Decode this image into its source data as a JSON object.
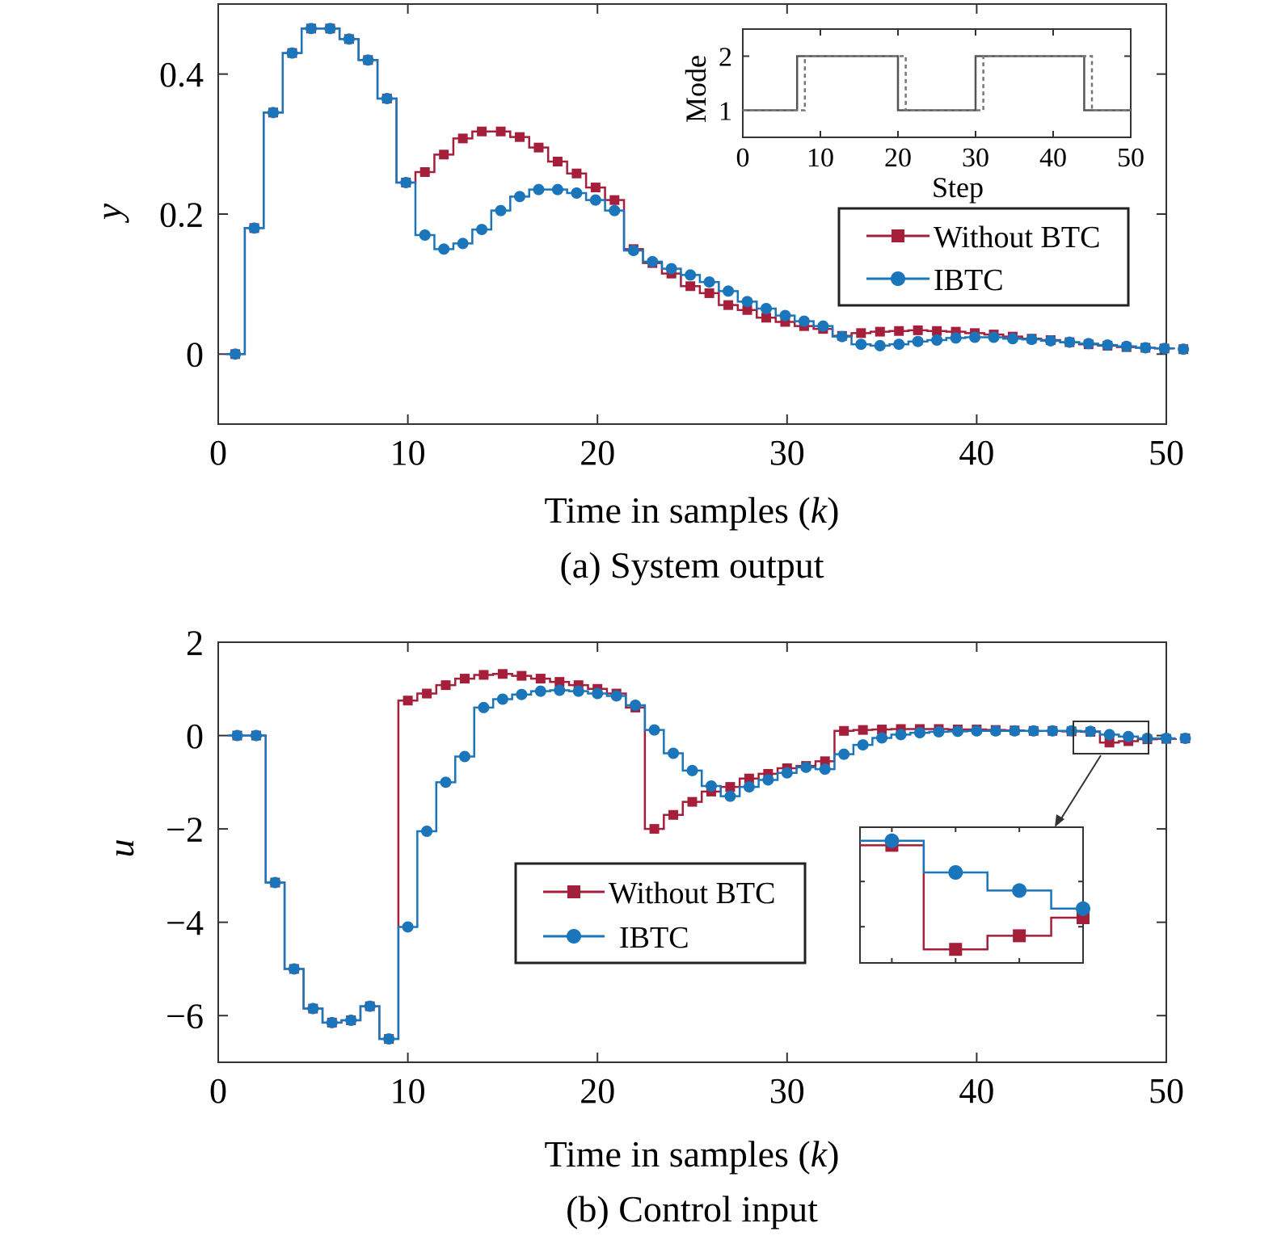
{
  "chart_data": [
    {
      "id": "a",
      "type": "line",
      "caption": "(a) System output",
      "xlabel_main": "Time in samples (",
      "xlabel_var": "k",
      "xlabel_end": ")",
      "ylabel": "y",
      "xlim": [
        0,
        50
      ],
      "ylim": [
        -0.1,
        0.5
      ],
      "xticks": [
        0,
        10,
        20,
        30,
        40,
        50
      ],
      "yticks": [
        0,
        0.2,
        0.4
      ],
      "ytick_labels": [
        "0",
        "0.2",
        "0.4"
      ],
      "legend_position": "right",
      "series": [
        {
          "name": "Without BTC",
          "color": "#a51f3b",
          "marker": "square",
          "x": [
            0,
            1,
            2,
            3,
            4,
            5,
            6,
            7,
            8,
            9,
            10,
            11,
            12,
            13,
            14,
            15,
            16,
            17,
            18,
            19,
            20,
            21,
            22,
            23,
            24,
            25,
            26,
            27,
            28,
            29,
            30,
            31,
            32,
            33,
            34,
            35,
            36,
            37,
            38,
            39,
            40,
            41,
            42,
            43,
            44,
            45,
            46,
            47,
            48,
            49,
            50
          ],
          "y": [
            0,
            0.18,
            0.345,
            0.43,
            0.465,
            0.465,
            0.45,
            0.42,
            0.365,
            0.245,
            0.26,
            0.285,
            0.308,
            0.318,
            0.318,
            0.31,
            0.295,
            0.275,
            0.258,
            0.238,
            0.22,
            0.15,
            0.13,
            0.115,
            0.097,
            0.087,
            0.07,
            0.063,
            0.052,
            0.046,
            0.04,
            0.036,
            0.026,
            0.03,
            0.032,
            0.033,
            0.034,
            0.033,
            0.032,
            0.03,
            0.028,
            0.025,
            0.022,
            0.02,
            0.017,
            0.014,
            0.012,
            0.01,
            0.009,
            0.008,
            0.007
          ]
        },
        {
          "name": "IBTC",
          "color": "#1a75bb",
          "marker": "circle",
          "x": [
            0,
            1,
            2,
            3,
            4,
            5,
            6,
            7,
            8,
            9,
            10,
            11,
            12,
            13,
            14,
            15,
            16,
            17,
            18,
            19,
            20,
            21,
            22,
            23,
            24,
            25,
            26,
            27,
            28,
            29,
            30,
            31,
            32,
            33,
            34,
            35,
            36,
            37,
            38,
            39,
            40,
            41,
            42,
            43,
            44,
            45,
            46,
            47,
            48,
            49,
            50
          ],
          "y": [
            0,
            0.18,
            0.345,
            0.43,
            0.465,
            0.465,
            0.45,
            0.42,
            0.365,
            0.245,
            0.17,
            0.15,
            0.158,
            0.178,
            0.205,
            0.225,
            0.235,
            0.235,
            0.23,
            0.22,
            0.205,
            0.148,
            0.132,
            0.122,
            0.113,
            0.103,
            0.09,
            0.075,
            0.065,
            0.055,
            0.047,
            0.04,
            0.025,
            0.014,
            0.012,
            0.014,
            0.018,
            0.02,
            0.023,
            0.024,
            0.024,
            0.022,
            0.021,
            0.019,
            0.017,
            0.015,
            0.013,
            0.011,
            0.009,
            0.008,
            0.007
          ]
        }
      ]
    },
    {
      "id": "a-inset",
      "type": "line",
      "xlabel": "Step",
      "ylabel": "Mode",
      "xlim": [
        0,
        50
      ],
      "ylim": [
        0.5,
        2.5
      ],
      "xticks": [
        0,
        10,
        20,
        30,
        40,
        50
      ],
      "yticks": [
        1,
        2
      ],
      "series": [
        {
          "style": "solid",
          "color": "#555555",
          "x": [
            0,
            7,
            7,
            20,
            20,
            30,
            30,
            44,
            44,
            50
          ],
          "y": [
            1,
            1,
            2,
            2,
            1,
            1,
            2,
            2,
            1,
            1
          ]
        },
        {
          "style": "dashed",
          "color": "#777777",
          "x": [
            0,
            8,
            8,
            21,
            21,
            31,
            31,
            45,
            45,
            50
          ],
          "y": [
            1,
            1,
            2,
            2,
            1,
            1,
            2,
            2,
            1,
            1
          ]
        }
      ]
    },
    {
      "id": "b",
      "type": "line",
      "caption": "(b) Control input",
      "xlabel_main": "Time in samples (",
      "xlabel_var": "k",
      "xlabel_end": ")",
      "ylabel": "u",
      "xlim": [
        0,
        50
      ],
      "ylim": [
        -7,
        2
      ],
      "xticks": [
        0,
        10,
        20,
        30,
        40,
        50
      ],
      "yticks": [
        -6,
        -4,
        -2,
        0,
        2
      ],
      "ytick_labels": [
        "−6",
        "−4",
        "−2",
        "0",
        "2"
      ],
      "legend_position": "center",
      "series": [
        {
          "name": "Without BTC",
          "color": "#a51f3b",
          "marker": "square",
          "x": [
            0,
            1,
            2,
            3,
            4,
            5,
            6,
            7,
            8,
            9,
            10,
            11,
            12,
            13,
            14,
            15,
            16,
            17,
            18,
            19,
            20,
            21,
            22,
            23,
            24,
            25,
            26,
            27,
            28,
            29,
            30,
            31,
            32,
            33,
            34,
            35,
            36,
            37,
            38,
            39,
            40,
            41,
            42,
            43,
            44,
            45,
            46,
            47,
            48,
            49,
            50
          ],
          "y": [
            0,
            0,
            -3.15,
            -5,
            -5.85,
            -6.15,
            -6.1,
            -5.8,
            -6.5,
            0.75,
            0.9,
            1.08,
            1.22,
            1.3,
            1.32,
            1.28,
            1.22,
            1.15,
            1.08,
            1,
            0.9,
            0.6,
            -2,
            -1.7,
            -1.42,
            -1.2,
            -1.1,
            -0.92,
            -0.82,
            -0.7,
            -0.65,
            -0.55,
            0.1,
            0.12,
            0.13,
            0.14,
            0.14,
            0.14,
            0.13,
            0.13,
            0.12,
            0.11,
            0.1,
            0.1,
            0.09,
            0.08,
            -0.15,
            -0.12,
            -0.08,
            -0.07,
            -0.06
          ]
        },
        {
          "name": "IBTC",
          "color": "#1a75bb",
          "marker": "circle",
          "x": [
            0,
            1,
            2,
            3,
            4,
            5,
            6,
            7,
            8,
            9,
            10,
            11,
            12,
            13,
            14,
            15,
            16,
            17,
            18,
            19,
            20,
            21,
            22,
            23,
            24,
            25,
            26,
            27,
            28,
            29,
            30,
            31,
            32,
            33,
            34,
            35,
            36,
            37,
            38,
            39,
            40,
            41,
            42,
            43,
            44,
            45,
            46,
            47,
            48,
            49,
            50
          ],
          "y": [
            0,
            0,
            -3.15,
            -5,
            -5.85,
            -6.15,
            -6.1,
            -5.8,
            -6.5,
            -4.1,
            -2.05,
            -1,
            -0.45,
            0.6,
            0.78,
            0.88,
            0.95,
            0.97,
            0.95,
            0.9,
            0.85,
            0.65,
            0.12,
            -0.38,
            -0.75,
            -1.08,
            -1.3,
            -1.1,
            -0.95,
            -0.8,
            -0.68,
            -0.72,
            -0.4,
            -0.2,
            -0.05,
            0.02,
            0.06,
            0.08,
            0.09,
            0.1,
            0.1,
            0.1,
            0.1,
            0.1,
            0.1,
            0.09,
            0.02,
            -0.02,
            -0.06,
            -0.06,
            -0.06
          ]
        }
      ]
    }
  ]
}
